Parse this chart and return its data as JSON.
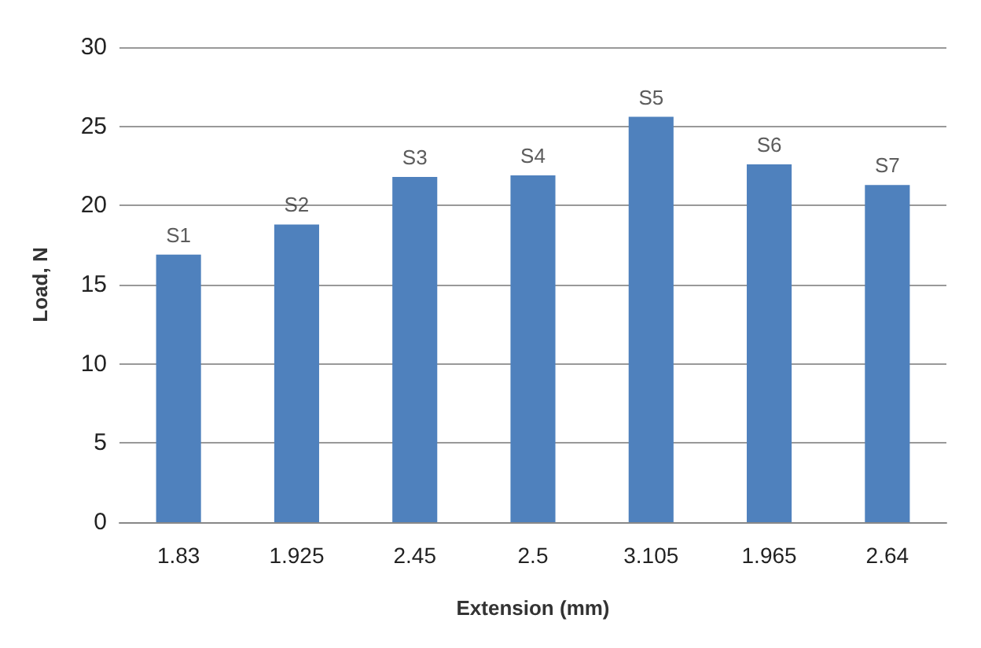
{
  "chart_data": {
    "type": "bar",
    "xlabel": "Extension (mm)",
    "ylabel": "Load, N",
    "categories": [
      "1.83",
      "1.925",
      "2.45",
      "2.5",
      "3.105",
      "1.965",
      "2.64"
    ],
    "values": [
      16.9,
      18.8,
      21.8,
      21.9,
      25.6,
      22.6,
      21.3
    ],
    "color": "#4f81bd",
    "ylim": [
      0,
      30
    ],
    "yticks": [
      0,
      5,
      10,
      15,
      20,
      25,
      30
    ],
    "grid": "y",
    "annotations": [
      {
        "text": "S1",
        "x": "1.83",
        "y": 16.9
      },
      {
        "text": "S2",
        "x": "1.925",
        "y": 18.8
      },
      {
        "text": "S3",
        "x": "2.45",
        "y": 21.8
      },
      {
        "text": "S4",
        "x": "2.5",
        "y": 21.9
      },
      {
        "text": "S5",
        "x": "3.105",
        "y": 25.6
      },
      {
        "text": "S6",
        "x": "1.965",
        "y": 22.6
      },
      {
        "text": "S7",
        "x": "2.64",
        "y": 21.3
      }
    ]
  }
}
